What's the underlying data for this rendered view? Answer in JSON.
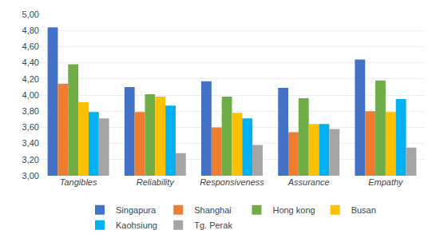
{
  "chart_data": {
    "type": "bar",
    "categories": [
      "Tangibles",
      "Reliability",
      "Responsiveness",
      "Assurance",
      "Empathy"
    ],
    "series": [
      {
        "name": "Singapura",
        "color": "#4472C4",
        "values": [
          4.84,
          4.1,
          4.17,
          4.09,
          4.44
        ]
      },
      {
        "name": "Shanghai",
        "color": "#ED7D31",
        "values": [
          4.14,
          3.79,
          3.6,
          3.54,
          3.8
        ]
      },
      {
        "name": "Hong kong",
        "color": "#70AD47",
        "values": [
          4.38,
          4.01,
          3.98,
          3.96,
          4.18
        ]
      },
      {
        "name": "Busan",
        "color": "#FFC000",
        "values": [
          3.91,
          3.98,
          3.78,
          3.64,
          3.79
        ]
      },
      {
        "name": "Kaohsiung",
        "color": "#00B0F0",
        "values": [
          3.79,
          3.87,
          3.71,
          3.64,
          3.95
        ]
      },
      {
        "name": "Tg. Perak",
        "color": "#A5A5A5",
        "values": [
          3.71,
          3.28,
          3.38,
          3.58,
          3.35
        ]
      }
    ],
    "ylim": [
      3.0,
      5.0
    ],
    "yticks": [
      {
        "value": 3.0,
        "label": "3,00"
      },
      {
        "value": 3.2,
        "label": "3,20"
      },
      {
        "value": 3.4,
        "label": "3,40"
      },
      {
        "value": 3.6,
        "label": "3,60"
      },
      {
        "value": 3.8,
        "label": "3,80"
      },
      {
        "value": 4.0,
        "label": "4,00"
      },
      {
        "value": 4.2,
        "label": "4,20"
      },
      {
        "value": 4.4,
        "label": "4,40"
      },
      {
        "value": 4.6,
        "label": "4,60"
      },
      {
        "value": 4.8,
        "label": "4,80"
      },
      {
        "value": 5.0,
        "label": "5,00"
      }
    ],
    "grid": true,
    "legend": "bottom"
  }
}
